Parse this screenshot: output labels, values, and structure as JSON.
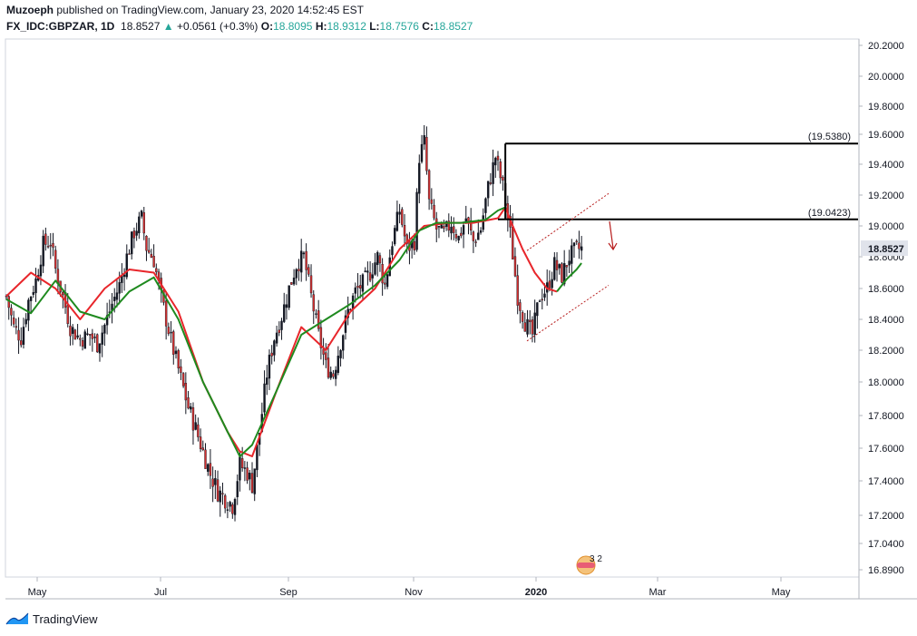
{
  "header": {
    "publisher": "Muzoeph",
    "published_text": "published on TradingView.com, January 23, 2020 14:52:45 EST",
    "symbol": "FX_IDC:GBPZAR, 1D",
    "last": "18.8527",
    "change_arrow": "▲",
    "change": "+0.0561 (+0.3%)",
    "o_label": "O:",
    "o_value": "18.8095",
    "h_label": "H:",
    "h_value": "18.9312",
    "l_label": "L:",
    "l_value": "18.7576",
    "c_label": "C:",
    "c_value": "18.8527"
  },
  "footer": {
    "brand": "TradingView",
    "logo_icon": "tradingview-logo-icon"
  },
  "colors": {
    "up": "#26a69a",
    "ma_up": "#1f8a1f",
    "ma_down": "#e8262b",
    "level": "#000000",
    "channel": "#b71c1c",
    "last_price_bg": "#e0e3eb"
  },
  "chart_data": {
    "type": "candlestick",
    "y_ticks": [
      "20.2000",
      "20.0000",
      "19.8000",
      "19.6000",
      "19.4000",
      "19.2000",
      "19.0000",
      "18.8000",
      "18.6000",
      "18.4000",
      "18.2000",
      "18.0000",
      "17.8000",
      "17.6000",
      "17.4000",
      "17.2000",
      "17.0400",
      "16.8900"
    ],
    "x_ticks": [
      "May",
      "Jul",
      "Sep",
      "Nov",
      "2020",
      "Mar",
      "May"
    ],
    "ylim": [
      16.86,
      20.24
    ],
    "last_price_label": "18.8527",
    "levels": [
      {
        "value": 19.538,
        "label": "(19.5380)"
      },
      {
        "value": 19.0423,
        "label": "(19.0423)"
      }
    ],
    "channel": {
      "upper": [
        [
          0.0,
          18.84
        ],
        [
          1.0,
          19.21
        ]
      ],
      "lower": [
        [
          0.0,
          18.26
        ],
        [
          1.0,
          18.62
        ]
      ]
    },
    "events_badge": "3 2",
    "series_price": [
      [
        0,
        18.55
      ],
      [
        3,
        18.35
      ],
      [
        6,
        18.28
      ],
      [
        9,
        18.52
      ],
      [
        12,
        18.65
      ],
      [
        15,
        18.88
      ],
      [
        18,
        18.9
      ],
      [
        20,
        18.72
      ],
      [
        23,
        18.55
      ],
      [
        26,
        18.35
      ],
      [
        30,
        18.27
      ],
      [
        34,
        18.3
      ],
      [
        37,
        18.24
      ],
      [
        40,
        18.36
      ],
      [
        43,
        18.5
      ],
      [
        46,
        18.62
      ],
      [
        49,
        18.8
      ],
      [
        52,
        18.96
      ],
      [
        55,
        19.05
      ],
      [
        57,
        18.86
      ],
      [
        60,
        18.78
      ],
      [
        62,
        18.62
      ],
      [
        65,
        18.4
      ],
      [
        68,
        18.2
      ],
      [
        71,
        18.02
      ],
      [
        74,
        17.85
      ],
      [
        77,
        17.72
      ],
      [
        80,
        17.58
      ],
      [
        83,
        17.44
      ],
      [
        86,
        17.34
      ],
      [
        89,
        17.3
      ],
      [
        92,
        17.26
      ],
      [
        95,
        17.5
      ],
      [
        98,
        17.45
      ],
      [
        100,
        17.38
      ],
      [
        103,
        17.7
      ],
      [
        106,
        18.05
      ],
      [
        109,
        18.28
      ],
      [
        112,
        18.42
      ],
      [
        115,
        18.6
      ],
      [
        118,
        18.75
      ],
      [
        121,
        18.8
      ],
      [
        124,
        18.55
      ],
      [
        127,
        18.3
      ],
      [
        130,
        18.1
      ],
      [
        133,
        18.05
      ],
      [
        136,
        18.25
      ],
      [
        139,
        18.45
      ],
      [
        142,
        18.58
      ],
      [
        145,
        18.63
      ],
      [
        148,
        18.7
      ],
      [
        151,
        18.8
      ],
      [
        154,
        18.62
      ],
      [
        157,
        18.9
      ],
      [
        160,
        19.1
      ],
      [
        163,
        18.85
      ],
      [
        166,
        18.9
      ],
      [
        168,
        19.45
      ],
      [
        170,
        19.55
      ],
      [
        172,
        19.15
      ],
      [
        175,
        18.98
      ],
      [
        178,
        18.95
      ],
      [
        181,
        19.02
      ],
      [
        184,
        18.92
      ],
      [
        187,
        19.05
      ],
      [
        190,
        18.9
      ],
      [
        193,
        18.98
      ],
      [
        196,
        19.25
      ],
      [
        199,
        19.45
      ],
      [
        202,
        19.25
      ],
      [
        205,
        18.95
      ],
      [
        208,
        18.55
      ],
      [
        211,
        18.38
      ],
      [
        214,
        18.3
      ],
      [
        217,
        18.55
      ],
      [
        220,
        18.6
      ],
      [
        223,
        18.75
      ],
      [
        226,
        18.68
      ],
      [
        229,
        18.8
      ],
      [
        232,
        18.85
      ],
      [
        234,
        18.85
      ]
    ],
    "series_ma_green": [
      [
        0,
        18.53
      ],
      [
        10,
        18.44
      ],
      [
        20,
        18.65
      ],
      [
        30,
        18.45
      ],
      [
        40,
        18.4
      ],
      [
        50,
        18.58
      ],
      [
        60,
        18.67
      ],
      [
        70,
        18.4
      ],
      [
        80,
        18.0
      ],
      [
        90,
        17.7
      ],
      [
        95,
        17.55
      ],
      [
        100,
        17.62
      ],
      [
        110,
        17.95
      ],
      [
        120,
        18.3
      ],
      [
        130,
        18.4
      ],
      [
        140,
        18.5
      ],
      [
        150,
        18.62
      ],
      [
        160,
        18.78
      ],
      [
        168,
        18.97
      ],
      [
        175,
        19.02
      ],
      [
        185,
        19.02
      ],
      [
        195,
        19.04
      ],
      [
        200,
        19.1
      ],
      [
        203,
        19.12
      ]
    ],
    "series_ma_red": [
      [
        0,
        18.55
      ],
      [
        10,
        18.7
      ],
      [
        20,
        18.6
      ],
      [
        30,
        18.4
      ],
      [
        40,
        18.6
      ],
      [
        50,
        18.72
      ],
      [
        60,
        18.7
      ],
      [
        70,
        18.45
      ],
      [
        80,
        18.0
      ],
      [
        90,
        17.7
      ],
      [
        95,
        17.58
      ],
      [
        100,
        17.55
      ],
      [
        110,
        17.95
      ],
      [
        120,
        18.35
      ],
      [
        130,
        18.2
      ],
      [
        140,
        18.45
      ],
      [
        150,
        18.6
      ],
      [
        160,
        18.85
      ],
      [
        170,
        19.0
      ],
      [
        180,
        19.02
      ],
      [
        190,
        19.02
      ],
      [
        200,
        19.05
      ],
      [
        203,
        19.12
      ],
      [
        206,
        19.0
      ],
      [
        210,
        18.85
      ],
      [
        215,
        18.7
      ],
      [
        220,
        18.6
      ],
      [
        224,
        18.58
      ]
    ],
    "series_ma_green_tail": [
      [
        224,
        18.58
      ],
      [
        228,
        18.66
      ],
      [
        232,
        18.72
      ],
      [
        234,
        18.76
      ]
    ]
  }
}
